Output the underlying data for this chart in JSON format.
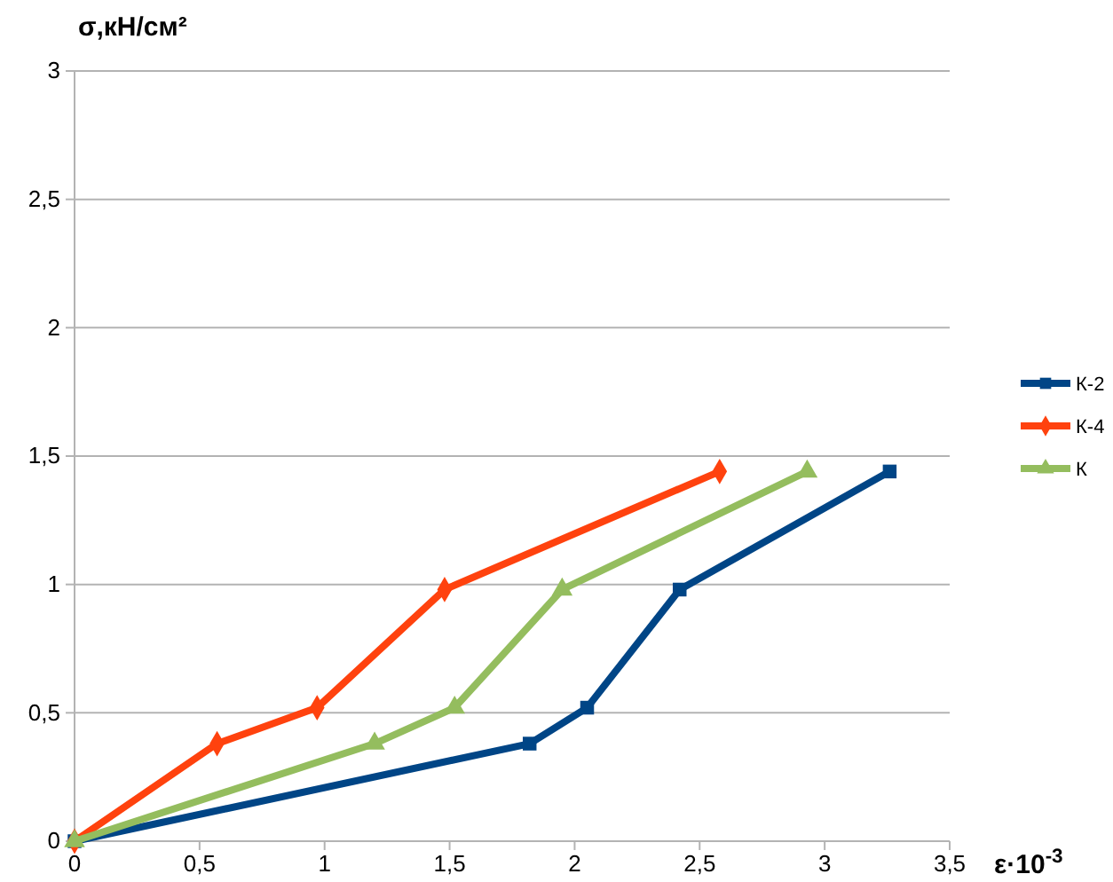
{
  "chart_data": {
    "type": "line",
    "ylabel": "σ,кН/см²",
    "xlabel": "ε·10$^{-3}$",
    "xlim": [
      0,
      3.5
    ],
    "xticks": [
      0,
      {
        "value": 0.5,
        "label": "0,5"
      },
      1,
      {
        "value": 1.5,
        "label": "1,5"
      },
      2,
      {
        "value": 2.5,
        "label": "2,5"
      },
      3,
      {
        "value": 3.5,
        "label": "3,5"
      }
    ],
    "ylim": [
      0,
      3
    ],
    "yticks": [
      0,
      {
        "value": 0.5,
        "label": "0,5"
      },
      1,
      {
        "value": 1.5,
        "label": "1,5"
      },
      2,
      {
        "value": 2.5,
        "label": "2,5"
      },
      3
    ],
    "grid": "y",
    "legend": "right",
    "series": [
      {
        "name": "К-2",
        "color": "#004586",
        "marker": "square",
        "x": [
          0,
          1.82,
          2.05,
          2.42,
          3.26
        ],
        "values": [
          0,
          0.38,
          0.52,
          0.98,
          1.44
        ]
      },
      {
        "name": "К-4",
        "color": "#ff420e",
        "marker": "diamond",
        "x": [
          0,
          0.57,
          0.97,
          1.48,
          2.58
        ],
        "values": [
          0,
          0.38,
          0.52,
          0.98,
          1.44
        ]
      },
      {
        "name": "К",
        "color": "#94bd5e",
        "marker": "triangle",
        "x": [
          0,
          1.2,
          1.52,
          1.95,
          2.93
        ],
        "values": [
          0,
          0.38,
          0.52,
          0.98,
          1.44
        ]
      }
    ]
  }
}
